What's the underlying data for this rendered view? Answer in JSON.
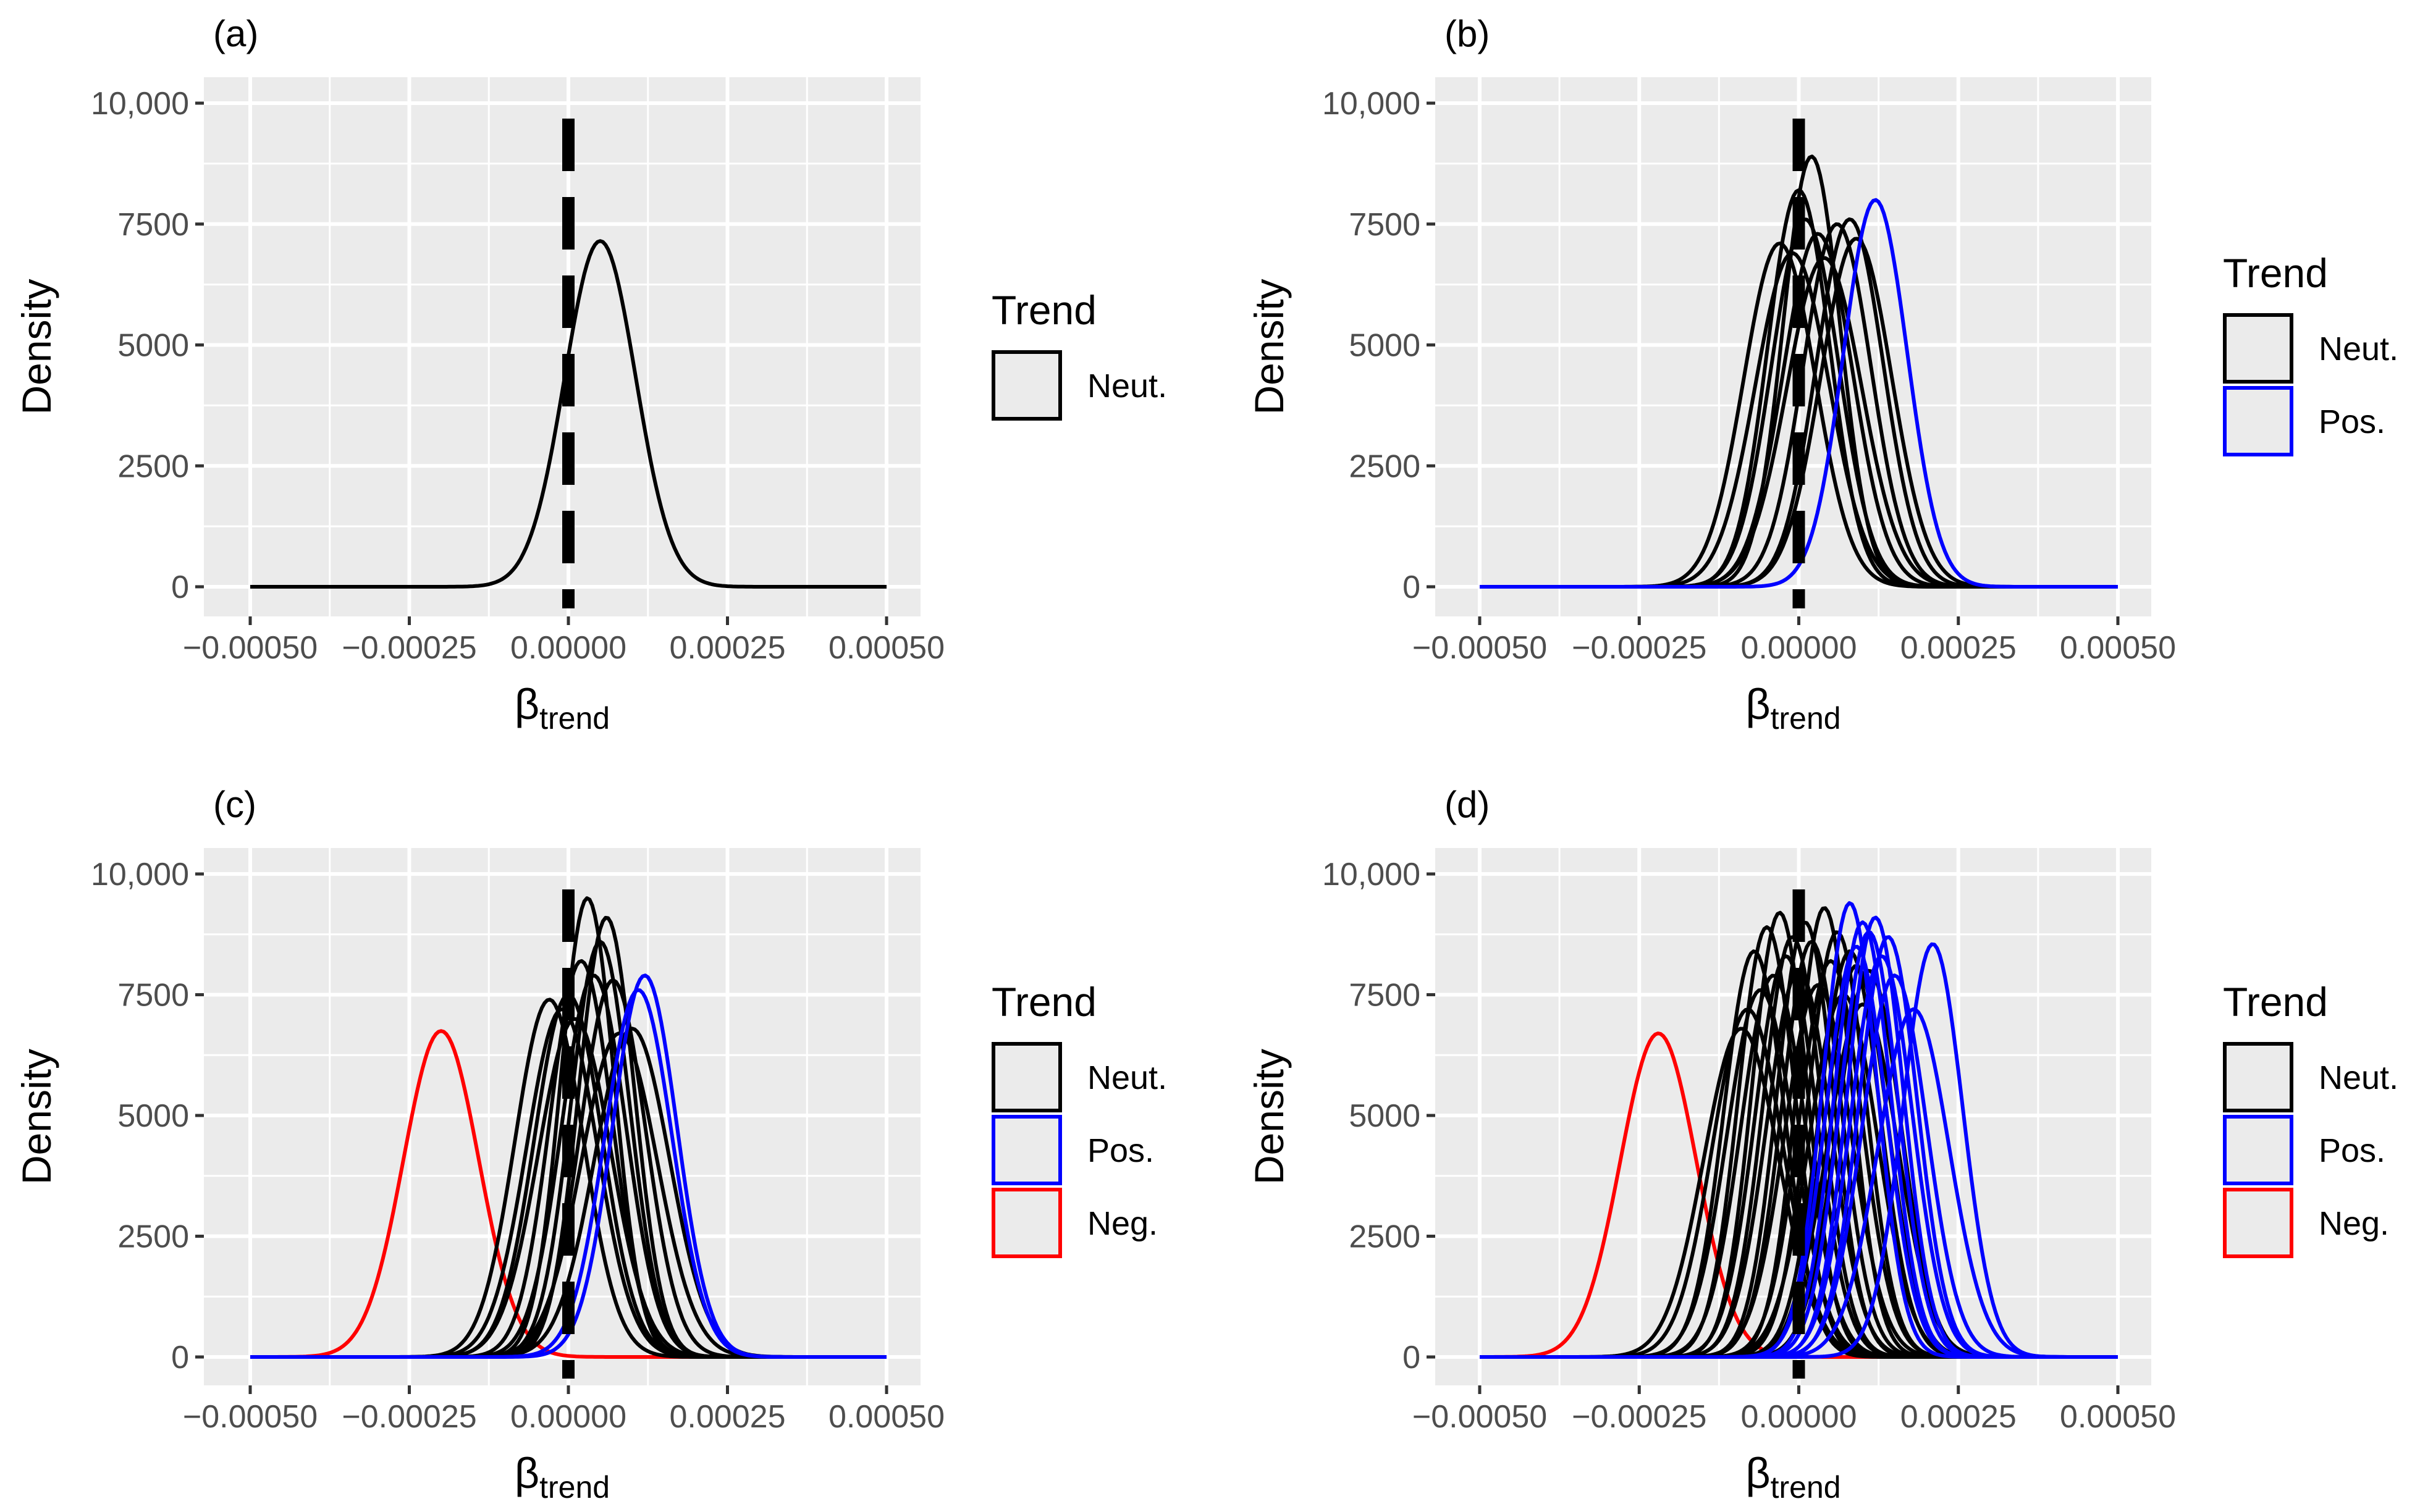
{
  "figure": {
    "ylabel": "Density",
    "xlabel_main": "β",
    "xlabel_sub": "trend",
    "legend_title": "Trend",
    "colors": {
      "Neut.": "#000000",
      "Pos.": "#0000ff",
      "Neg.": "#ff0000",
      "panel_bg": "#ebebeb",
      "grid": "#ffffff"
    }
  },
  "chart_data": [
    {
      "type": "line",
      "panel_label": "(a)",
      "xlim": [
        -0.0005,
        0.0005
      ],
      "ylim": [
        0,
        10000
      ],
      "x_ticks": [
        -0.0005,
        -0.00025,
        0,
        0.00025,
        0.0005
      ],
      "x_tick_labels": [
        "−0.00050",
        "−0.00025",
        "0.00000",
        "0.00025",
        "0.00050"
      ],
      "y_ticks": [
        0,
        2500,
        5000,
        7500,
        10000
      ],
      "y_tick_labels": [
        "0",
        "2500",
        "5000",
        "7500",
        "10,000"
      ],
      "legend": [
        "Neut."
      ],
      "reference_line_x": 0,
      "series": [
        {
          "name": "Neut.",
          "mean": 5e-05,
          "peak": 7150
        }
      ]
    },
    {
      "type": "line",
      "panel_label": "(b)",
      "xlim": [
        -0.0005,
        0.0005
      ],
      "ylim": [
        0,
        10000
      ],
      "x_ticks": [
        -0.0005,
        -0.00025,
        0,
        0.00025,
        0.0005
      ],
      "x_tick_labels": [
        "−0.00050",
        "−0.00025",
        "0.00000",
        "0.00025",
        "0.00050"
      ],
      "y_ticks": [
        0,
        2500,
        5000,
        7500,
        10000
      ],
      "y_tick_labels": [
        "0",
        "2500",
        "5000",
        "7500",
        "10,000"
      ],
      "legend": [
        "Neut.",
        "Pos."
      ],
      "reference_line_x": 0,
      "series": [
        {
          "name": "Neut.",
          "mean": -3e-05,
          "peak": 7100
        },
        {
          "name": "Neut.",
          "mean": -1e-05,
          "peak": 6900
        },
        {
          "name": "Neut.",
          "mean": 0.0,
          "peak": 8200
        },
        {
          "name": "Neut.",
          "mean": 1e-05,
          "peak": 7600
        },
        {
          "name": "Neut.",
          "mean": 2e-05,
          "peak": 8900
        },
        {
          "name": "Neut.",
          "mean": 3e-05,
          "peak": 7300
        },
        {
          "name": "Neut.",
          "mean": 4e-05,
          "peak": 6800
        },
        {
          "name": "Neut.",
          "mean": 6e-05,
          "peak": 7500
        },
        {
          "name": "Neut.",
          "mean": 8e-05,
          "peak": 7600
        },
        {
          "name": "Neut.",
          "mean": 9e-05,
          "peak": 7200
        },
        {
          "name": "Pos.",
          "mean": 0.00012,
          "peak": 8000
        }
      ]
    },
    {
      "type": "line",
      "panel_label": "(c)",
      "xlim": [
        -0.0005,
        0.0005
      ],
      "ylim": [
        0,
        10000
      ],
      "x_ticks": [
        -0.0005,
        -0.00025,
        0,
        0.00025,
        0.0005
      ],
      "x_tick_labels": [
        "−0.00050",
        "−0.00025",
        "0.00000",
        "0.00025",
        "0.00050"
      ],
      "y_ticks": [
        0,
        2500,
        5000,
        7500,
        10000
      ],
      "y_tick_labels": [
        "0",
        "2500",
        "5000",
        "7500",
        "10,000"
      ],
      "legend": [
        "Neut.",
        "Pos.",
        "Neg."
      ],
      "reference_line_x": 0,
      "series": [
        {
          "name": "Neg.",
          "mean": -0.0002,
          "peak": 6750
        },
        {
          "name": "Neut.",
          "mean": -3e-05,
          "peak": 7400
        },
        {
          "name": "Neut.",
          "mean": -1e-05,
          "peak": 7200
        },
        {
          "name": "Neut.",
          "mean": 0.0,
          "peak": 7500
        },
        {
          "name": "Neut.",
          "mean": 1e-05,
          "peak": 7000
        },
        {
          "name": "Neut.",
          "mean": 2e-05,
          "peak": 8200
        },
        {
          "name": "Neut.",
          "mean": 3e-05,
          "peak": 9500
        },
        {
          "name": "Neut.",
          "mean": 4e-05,
          "peak": 7900
        },
        {
          "name": "Neut.",
          "mean": 5e-05,
          "peak": 8600
        },
        {
          "name": "Neut.",
          "mean": 6e-05,
          "peak": 9100
        },
        {
          "name": "Neut.",
          "mean": 7e-05,
          "peak": 7800
        },
        {
          "name": "Neut.",
          "mean": 8e-05,
          "peak": 6700
        },
        {
          "name": "Neut.",
          "mean": 0.0001,
          "peak": 6800
        },
        {
          "name": "Pos.",
          "mean": 0.00011,
          "peak": 7600
        },
        {
          "name": "Pos.",
          "mean": 0.00012,
          "peak": 7900
        }
      ]
    },
    {
      "type": "line",
      "panel_label": "(d)",
      "xlim": [
        -0.0005,
        0.0005
      ],
      "ylim": [
        0,
        10000
      ],
      "x_ticks": [
        -0.0005,
        -0.00025,
        0,
        0.00025,
        0.0005
      ],
      "x_tick_labels": [
        "−0.00050",
        "−0.00025",
        "0.00000",
        "0.00025",
        "0.00050"
      ],
      "y_ticks": [
        0,
        2500,
        5000,
        7500,
        10000
      ],
      "y_tick_labels": [
        "0",
        "2500",
        "5000",
        "7500",
        "10,000"
      ],
      "legend": [
        "Neut.",
        "Pos.",
        "Neg."
      ],
      "reference_line_x": 0,
      "series": [
        {
          "name": "Neg.",
          "mean": -0.00022,
          "peak": 6700
        },
        {
          "name": "Neut.",
          "mean": -9e-05,
          "peak": 6800
        },
        {
          "name": "Neut.",
          "mean": -8e-05,
          "peak": 7200
        },
        {
          "name": "Neut.",
          "mean": -7e-05,
          "peak": 8400
        },
        {
          "name": "Neut.",
          "mean": -6e-05,
          "peak": 7600
        },
        {
          "name": "Neut.",
          "mean": -5e-05,
          "peak": 8900
        },
        {
          "name": "Neut.",
          "mean": -4e-05,
          "peak": 7900
        },
        {
          "name": "Neut.",
          "mean": -3e-05,
          "peak": 9200
        },
        {
          "name": "Neut.",
          "mean": -2e-05,
          "peak": 8300
        },
        {
          "name": "Neut.",
          "mean": -1e-05,
          "peak": 8700
        },
        {
          "name": "Neut.",
          "mean": 0.0,
          "peak": 8000
        },
        {
          "name": "Neut.",
          "mean": 1e-05,
          "peak": 9000
        },
        {
          "name": "Neut.",
          "mean": 2e-05,
          "peak": 8600
        },
        {
          "name": "Neut.",
          "mean": 3e-05,
          "peak": 7700
        },
        {
          "name": "Neut.",
          "mean": 4e-05,
          "peak": 9300
        },
        {
          "name": "Neut.",
          "mean": 5e-05,
          "peak": 8200
        },
        {
          "name": "Neut.",
          "mean": 6e-05,
          "peak": 8800
        },
        {
          "name": "Neut.",
          "mean": 7e-05,
          "peak": 7500
        },
        {
          "name": "Neut.",
          "mean": 8e-05,
          "peak": 8400
        },
        {
          "name": "Neut.",
          "mean": 9e-05,
          "peak": 8100
        },
        {
          "name": "Neut.",
          "mean": 0.0001,
          "peak": 7300
        },
        {
          "name": "Neut.",
          "mean": 0.00011,
          "peak": 8000
        },
        {
          "name": "Pos.",
          "mean": 8e-05,
          "peak": 9400
        },
        {
          "name": "Pos.",
          "mean": 9e-05,
          "peak": 8500
        },
        {
          "name": "Pos.",
          "mean": 0.0001,
          "peak": 9000
        },
        {
          "name": "Pos.",
          "mean": 0.00011,
          "peak": 8800
        },
        {
          "name": "Pos.",
          "mean": 0.00012,
          "peak": 9100
        },
        {
          "name": "Pos.",
          "mean": 0.00013,
          "peak": 8300
        },
        {
          "name": "Pos.",
          "mean": 0.00014,
          "peak": 8700
        },
        {
          "name": "Pos.",
          "mean": 0.00015,
          "peak": 7900
        },
        {
          "name": "Pos.",
          "mean": 0.00018,
          "peak": 7200
        },
        {
          "name": "Pos.",
          "mean": 0.00021,
          "peak": 8550
        }
      ]
    }
  ]
}
